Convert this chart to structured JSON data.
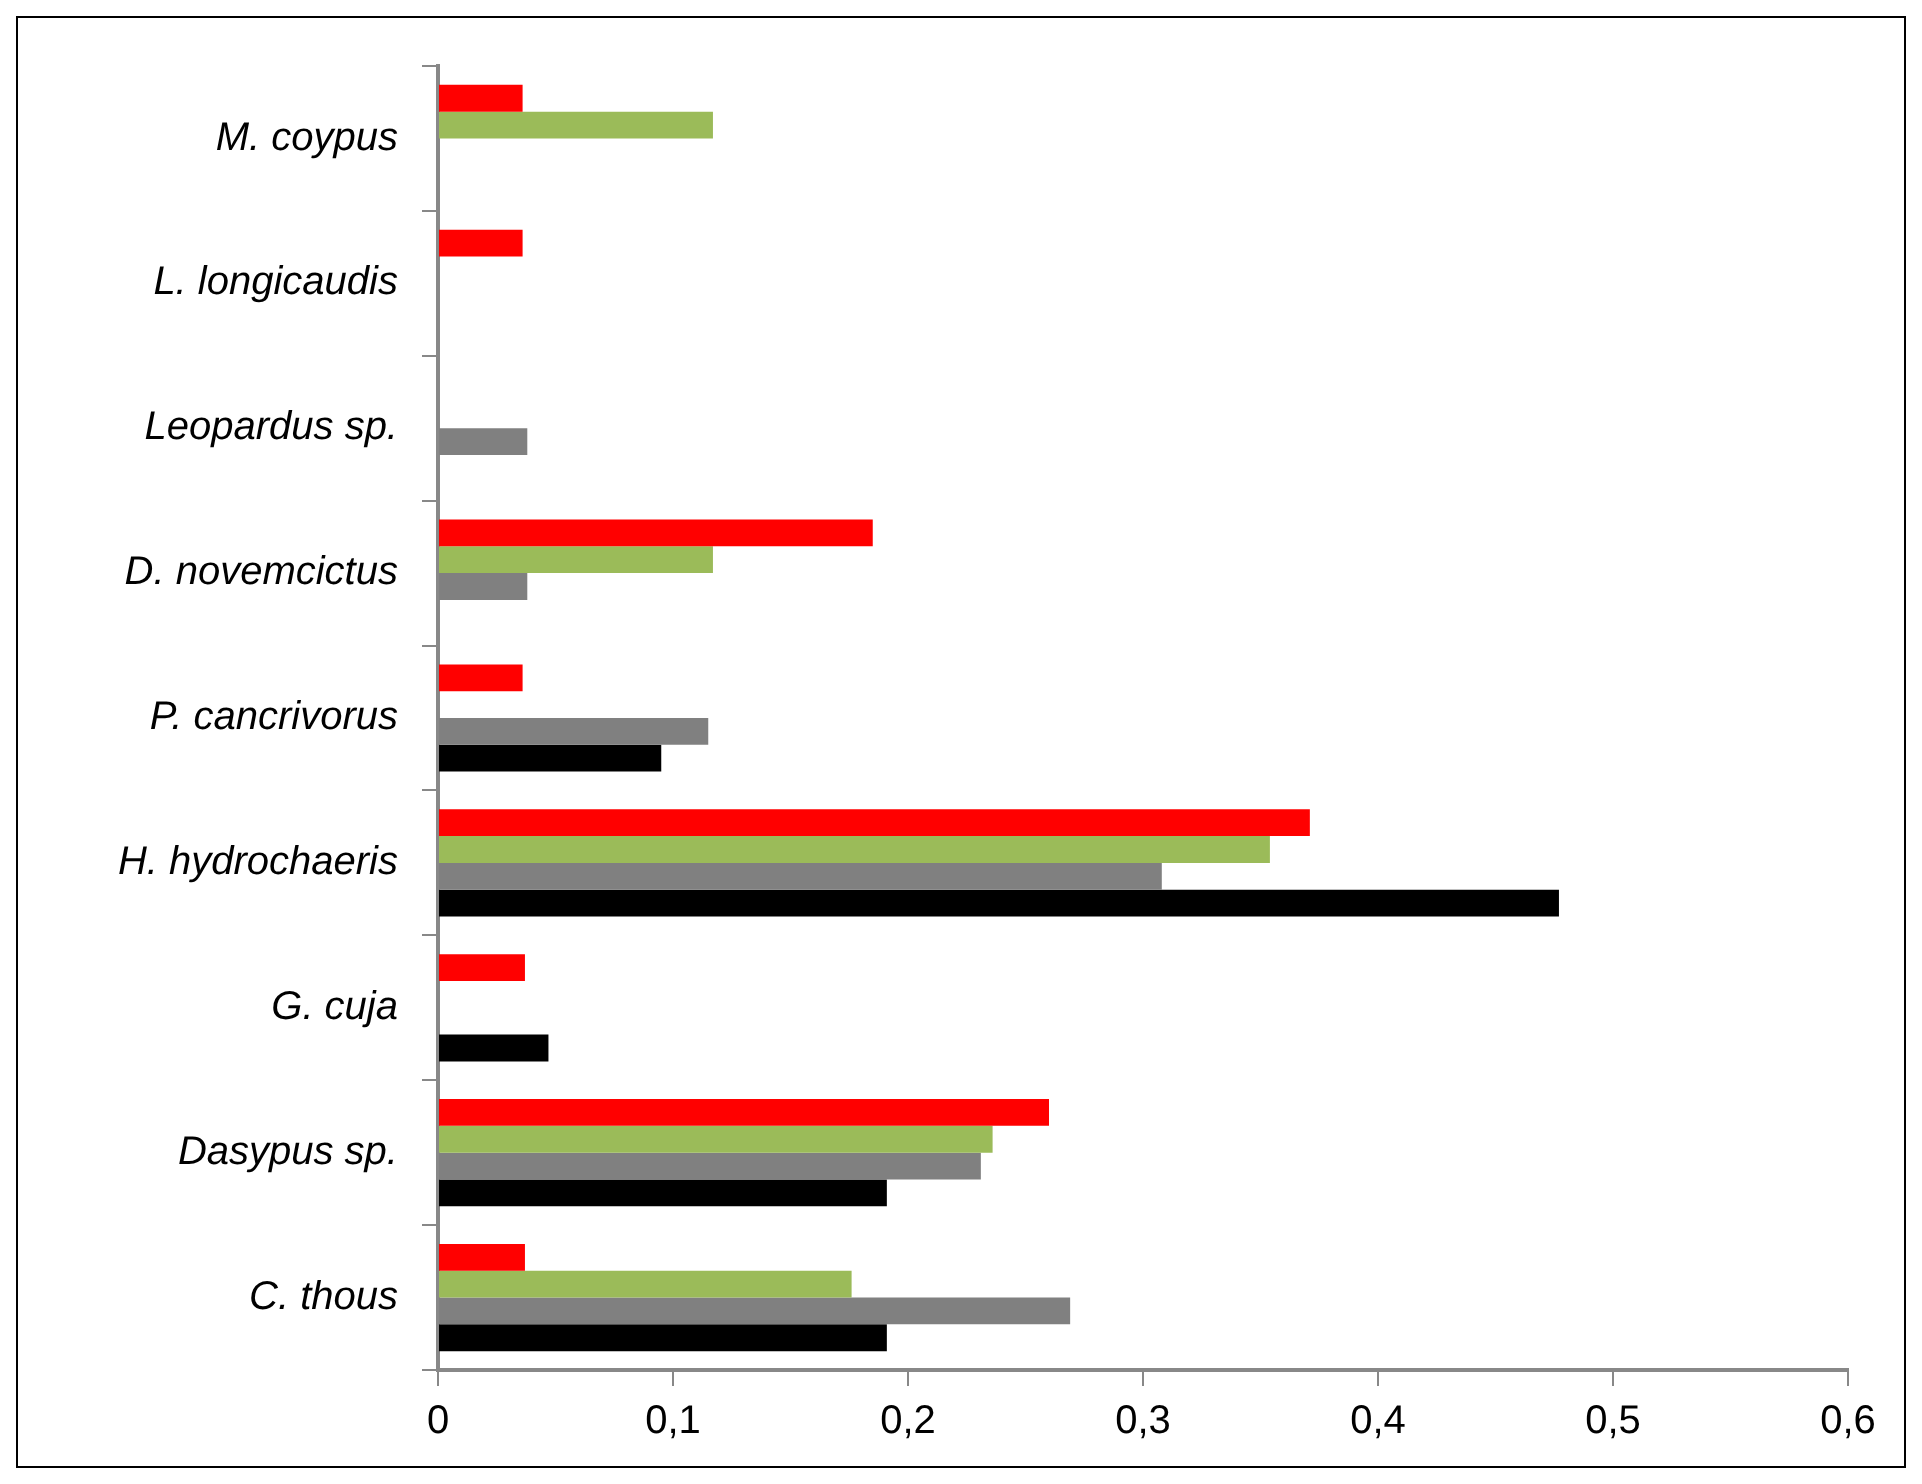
{
  "chart_data": {
    "type": "bar",
    "orientation": "horizontal",
    "categories": [
      "M. coypus",
      "L. longicaudis",
      "Leopardus sp.",
      "D. novemcictus",
      "P. cancrivorus",
      "H. hydrochaeris",
      "G. cuja",
      "Dasypus sp.",
      "C. thous"
    ],
    "series": [
      {
        "color": "#ff0000",
        "values": [
          0.036,
          0.036,
          null,
          0.185,
          0.036,
          0.371,
          0.037,
          0.26,
          0.037
        ]
      },
      {
        "color": "#9bbb59",
        "values": [
          0.117,
          null,
          null,
          0.117,
          null,
          0.354,
          null,
          0.236,
          0.176
        ]
      },
      {
        "color": "#808080",
        "values": [
          null,
          null,
          0.038,
          0.038,
          0.115,
          0.308,
          null,
          0.231,
          0.269
        ]
      },
      {
        "color": "#000000",
        "values": [
          null,
          null,
          null,
          null,
          0.095,
          0.477,
          0.047,
          0.191,
          0.191
        ]
      }
    ],
    "xlim": [
      0,
      0.6
    ],
    "xticks": [
      0,
      {
        "value": 0.1,
        "label": "0,1"
      },
      {
        "value": 0.2,
        "label": "0,2"
      },
      {
        "value": 0.3,
        "label": "0,3"
      },
      {
        "value": 0.4,
        "label": "0,4"
      },
      {
        "value": 0.5,
        "label": "0,5"
      },
      {
        "value": 0.6,
        "label": "0,6"
      }
    ],
    "grid": false,
    "legend": false
  }
}
